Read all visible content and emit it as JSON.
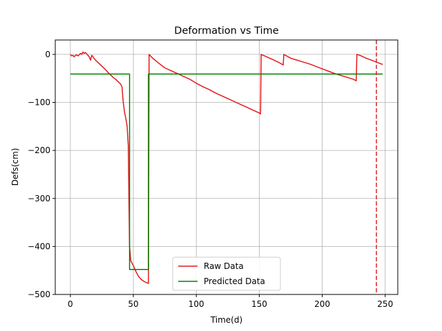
{
  "chart_data": {
    "type": "line",
    "title": "Deformation vs Time",
    "xlabel": "Time(d)",
    "ylabel": "Defs(cm)",
    "xlim": [
      -12,
      260
    ],
    "ylim": [
      -500,
      30
    ],
    "xticks": [
      0,
      50,
      100,
      150,
      200,
      250
    ],
    "yticks": [
      0,
      -100,
      -200,
      -300,
      -400,
      -500
    ],
    "grid": true,
    "legend_position": "lower center",
    "vline": {
      "x": 243,
      "color": "#d62728",
      "style": "dashed"
    },
    "series": [
      {
        "name": "Raw Data",
        "color": "#e41a1c",
        "points": [
          [
            0,
            0
          ],
          [
            1,
            -3
          ],
          [
            2,
            -2
          ],
          [
            3,
            -5
          ],
          [
            4,
            -2
          ],
          [
            5,
            -1
          ],
          [
            6,
            -3
          ],
          [
            7,
            -1
          ],
          [
            8,
            2
          ],
          [
            9,
            0
          ],
          [
            10,
            5
          ],
          [
            11,
            2
          ],
          [
            12,
            4
          ],
          [
            13,
            1
          ],
          [
            14,
            -2
          ],
          [
            15,
            -5
          ],
          [
            16,
            -12
          ],
          [
            17,
            -2
          ],
          [
            18,
            -5
          ],
          [
            19,
            -9
          ],
          [
            20,
            -12
          ],
          [
            22,
            -17
          ],
          [
            24,
            -22
          ],
          [
            26,
            -27
          ],
          [
            28,
            -32
          ],
          [
            30,
            -38
          ],
          [
            32,
            -43
          ],
          [
            34,
            -48
          ],
          [
            36,
            -52
          ],
          [
            38,
            -57
          ],
          [
            40,
            -62
          ],
          [
            41,
            -68
          ],
          [
            42,
            -100
          ],
          [
            43,
            -120
          ],
          [
            44,
            -133
          ],
          [
            45,
            -148
          ],
          [
            46,
            -190
          ],
          [
            46.5,
            -300
          ],
          [
            47,
            -400
          ],
          [
            48,
            -430
          ],
          [
            50,
            -440
          ],
          [
            52,
            -452
          ],
          [
            54,
            -462
          ],
          [
            56,
            -468
          ],
          [
            58,
            -472
          ],
          [
            60,
            -475
          ],
          [
            62,
            -477
          ],
          [
            62.5,
            0
          ],
          [
            65,
            -7
          ],
          [
            70,
            -18
          ],
          [
            75,
            -28
          ],
          [
            80,
            -34
          ],
          [
            85,
            -40
          ],
          [
            90,
            -46
          ],
          [
            95,
            -52
          ],
          [
            100,
            -60
          ],
          [
            105,
            -67
          ],
          [
            110,
            -73
          ],
          [
            115,
            -80
          ],
          [
            120,
            -86
          ],
          [
            125,
            -92
          ],
          [
            130,
            -98
          ],
          [
            135,
            -104
          ],
          [
            140,
            -110
          ],
          [
            145,
            -116
          ],
          [
            150,
            -122
          ],
          [
            151,
            -124
          ],
          [
            151.5,
            0
          ],
          [
            155,
            -4
          ],
          [
            160,
            -10
          ],
          [
            165,
            -16
          ],
          [
            169,
            -22
          ],
          [
            169.5,
            0
          ],
          [
            175,
            -8
          ],
          [
            180,
            -12
          ],
          [
            185,
            -16
          ],
          [
            190,
            -20
          ],
          [
            195,
            -25
          ],
          [
            200,
            -30
          ],
          [
            205,
            -35
          ],
          [
            210,
            -40
          ],
          [
            215,
            -44
          ],
          [
            220,
            -48
          ],
          [
            225,
            -52
          ],
          [
            227,
            -55
          ],
          [
            227.5,
            0
          ],
          [
            230,
            -2
          ],
          [
            235,
            -8
          ],
          [
            240,
            -13
          ],
          [
            245,
            -18
          ],
          [
            248,
            -21
          ]
        ]
      },
      {
        "name": "Predicted Data",
        "color": "#008000",
        "points": [
          [
            0,
            -41
          ],
          [
            47,
            -41
          ],
          [
            47,
            -448
          ],
          [
            62,
            -448
          ],
          [
            62,
            -41
          ],
          [
            248,
            -41
          ]
        ]
      }
    ]
  }
}
